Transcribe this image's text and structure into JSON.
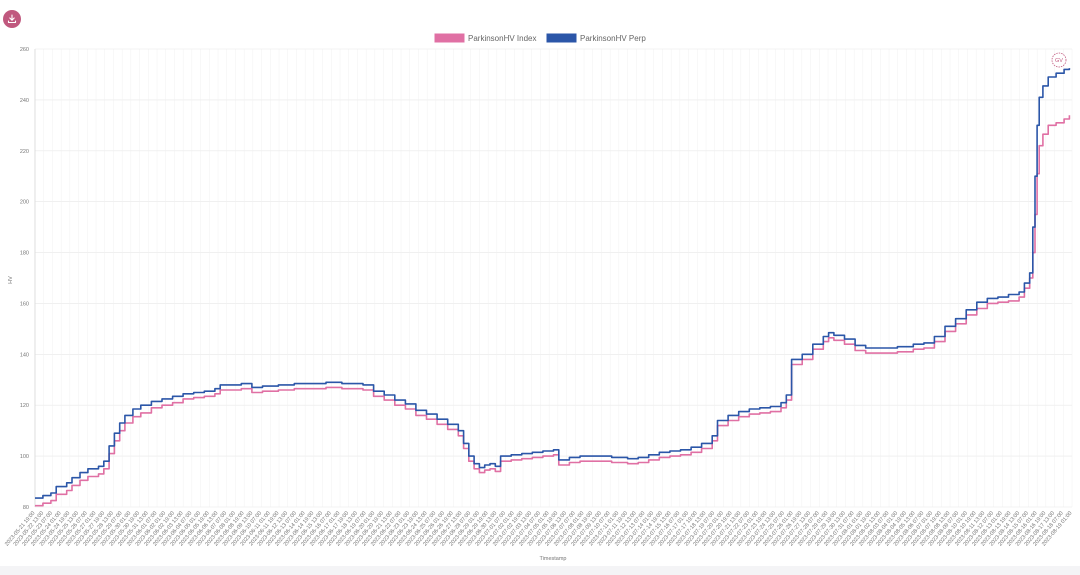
{
  "toolbar": {
    "download_icon": "download-icon"
  },
  "chart_data": {
    "type": "line",
    "xlabel": "Timestamp",
    "ylabel": "HV",
    "ylim": [
      80,
      260
    ],
    "yticks": [
      80,
      100,
      120,
      140,
      160,
      180,
      200,
      220,
      240,
      260
    ],
    "legend": "top-center",
    "grid": true,
    "annotation": "GV",
    "x_first_tick": "2023-05-21 19:00",
    "x_last_tick": "2023-08-19 01:00",
    "x_tick_count": 120,
    "series": [
      {
        "name": "ParkinsonHV Index",
        "color": "#e070a4",
        "points": [
          [
            0,
            80.5
          ],
          [
            1.5,
            81.5
          ],
          [
            3,
            82.5
          ],
          [
            4,
            85
          ],
          [
            6,
            86.5
          ],
          [
            7,
            88.5
          ],
          [
            8.5,
            90.5
          ],
          [
            10,
            92
          ],
          [
            12,
            93
          ],
          [
            13,
            95
          ],
          [
            14,
            101
          ],
          [
            15,
            106
          ],
          [
            16,
            110
          ],
          [
            17,
            113
          ],
          [
            18.5,
            115.5
          ],
          [
            20,
            117
          ],
          [
            22,
            119
          ],
          [
            24,
            120
          ],
          [
            26,
            121
          ],
          [
            28,
            122.5
          ],
          [
            30,
            123
          ],
          [
            32,
            123.5
          ],
          [
            34,
            124.5
          ],
          [
            35,
            126
          ],
          [
            37,
            126
          ],
          [
            39,
            126.5
          ],
          [
            41,
            125
          ],
          [
            43,
            125.5
          ],
          [
            46,
            126
          ],
          [
            49,
            126.5
          ],
          [
            52,
            126.5
          ],
          [
            55,
            127
          ],
          [
            58,
            126.5
          ],
          [
            60,
            126.5
          ],
          [
            62,
            126
          ],
          [
            64,
            123.5
          ],
          [
            66,
            122
          ],
          [
            68,
            120
          ],
          [
            70,
            118.5
          ],
          [
            72,
            116
          ],
          [
            74,
            114.5
          ],
          [
            76,
            112.5
          ],
          [
            78,
            110.5
          ],
          [
            80,
            108
          ],
          [
            81,
            103
          ],
          [
            82,
            98
          ],
          [
            83,
            95
          ],
          [
            84,
            93.5
          ],
          [
            85,
            94.5
          ],
          [
            86,
            95
          ],
          [
            87,
            94
          ],
          [
            88,
            98
          ],
          [
            90,
            98.5
          ],
          [
            92,
            99
          ],
          [
            94,
            99.5
          ],
          [
            96,
            100
          ],
          [
            98,
            100.5
          ],
          [
            99,
            96.5
          ],
          [
            101,
            97.5
          ],
          [
            103,
            98
          ],
          [
            106,
            98
          ],
          [
            109,
            97.5
          ],
          [
            112,
            97
          ],
          [
            114,
            97.5
          ],
          [
            116,
            98.5
          ],
          [
            118,
            99.5
          ],
          [
            120,
            100
          ],
          [
            122,
            100.5
          ],
          [
            124,
            101.5
          ],
          [
            126,
            103
          ],
          [
            128,
            106
          ],
          [
            129,
            112
          ],
          [
            131,
            114
          ],
          [
            133,
            115.5
          ],
          [
            135,
            116.5
          ],
          [
            137,
            117
          ],
          [
            139,
            117.5
          ],
          [
            141,
            119
          ],
          [
            142,
            122
          ],
          [
            143,
            136
          ],
          [
            145,
            138
          ],
          [
            147,
            142
          ],
          [
            149,
            145
          ],
          [
            150,
            146.5
          ],
          [
            151,
            145.5
          ],
          [
            153,
            144
          ],
          [
            155,
            141.5
          ],
          [
            157,
            140.5
          ],
          [
            160,
            140.5
          ],
          [
            163,
            141
          ],
          [
            166,
            142
          ],
          [
            168,
            142.5
          ],
          [
            170,
            145
          ],
          [
            172,
            149
          ],
          [
            174,
            152
          ],
          [
            176,
            155.5
          ],
          [
            178,
            158
          ],
          [
            180,
            160
          ],
          [
            182,
            160.5
          ],
          [
            184,
            161
          ],
          [
            186,
            162.5
          ],
          [
            187,
            166
          ],
          [
            188,
            170
          ],
          [
            188.6,
            180
          ],
          [
            189,
            195
          ],
          [
            189.4,
            211
          ],
          [
            189.8,
            222
          ],
          [
            190.5,
            226.5
          ],
          [
            191.5,
            230
          ],
          [
            193,
            231
          ],
          [
            194.5,
            232.5
          ],
          [
            195.5,
            234
          ]
        ]
      },
      {
        "name": "ParkinsonHV Perp",
        "color": "#2b56a8",
        "points": [
          [
            0,
            83.5
          ],
          [
            1.5,
            84.5
          ],
          [
            3,
            85.5
          ],
          [
            4,
            88
          ],
          [
            6,
            89.5
          ],
          [
            7,
            91.5
          ],
          [
            8.5,
            93.5
          ],
          [
            10,
            95
          ],
          [
            12,
            96
          ],
          [
            13,
            98
          ],
          [
            14,
            104
          ],
          [
            15,
            109
          ],
          [
            16,
            113
          ],
          [
            17,
            116
          ],
          [
            18.5,
            118.5
          ],
          [
            20,
            120
          ],
          [
            22,
            121.5
          ],
          [
            24,
            122.5
          ],
          [
            26,
            123.5
          ],
          [
            28,
            124.5
          ],
          [
            30,
            125
          ],
          [
            32,
            125.5
          ],
          [
            34,
            126.5
          ],
          [
            35,
            128
          ],
          [
            37,
            128
          ],
          [
            39,
            128.5
          ],
          [
            41,
            127
          ],
          [
            43,
            127.5
          ],
          [
            46,
            128
          ],
          [
            49,
            128.5
          ],
          [
            52,
            128.5
          ],
          [
            55,
            129
          ],
          [
            58,
            128.5
          ],
          [
            60,
            128.5
          ],
          [
            62,
            128
          ],
          [
            64,
            125.5
          ],
          [
            66,
            124
          ],
          [
            68,
            122
          ],
          [
            70,
            120.5
          ],
          [
            72,
            118
          ],
          [
            74,
            116.5
          ],
          [
            76,
            114.5
          ],
          [
            78,
            112.5
          ],
          [
            80,
            110
          ],
          [
            81,
            105
          ],
          [
            82,
            100
          ],
          [
            83,
            97
          ],
          [
            84,
            95.5
          ],
          [
            85,
            96.5
          ],
          [
            86,
            97
          ],
          [
            87,
            96
          ],
          [
            88,
            100
          ],
          [
            90,
            100.5
          ],
          [
            92,
            101
          ],
          [
            94,
            101.5
          ],
          [
            96,
            102
          ],
          [
            98,
            102.5
          ],
          [
            99,
            98.5
          ],
          [
            101,
            99.5
          ],
          [
            103,
            100
          ],
          [
            106,
            100
          ],
          [
            109,
            99.5
          ],
          [
            112,
            99
          ],
          [
            114,
            99.5
          ],
          [
            116,
            100.5
          ],
          [
            118,
            101.5
          ],
          [
            120,
            102
          ],
          [
            122,
            102.5
          ],
          [
            124,
            103.5
          ],
          [
            126,
            105
          ],
          [
            128,
            108
          ],
          [
            129,
            114
          ],
          [
            131,
            116
          ],
          [
            133,
            117.5
          ],
          [
            135,
            118.5
          ],
          [
            137,
            119
          ],
          [
            139,
            119.5
          ],
          [
            141,
            121
          ],
          [
            142,
            124
          ],
          [
            143,
            138
          ],
          [
            145,
            140
          ],
          [
            147,
            144
          ],
          [
            149,
            147
          ],
          [
            150,
            148.5
          ],
          [
            151,
            147.5
          ],
          [
            153,
            146
          ],
          [
            155,
            143.5
          ],
          [
            157,
            142.5
          ],
          [
            160,
            142.5
          ],
          [
            163,
            143
          ],
          [
            166,
            144
          ],
          [
            168,
            144.5
          ],
          [
            170,
            147
          ],
          [
            172,
            151
          ],
          [
            174,
            154
          ],
          [
            176,
            157.5
          ],
          [
            178,
            160.5
          ],
          [
            180,
            162
          ],
          [
            182,
            162.5
          ],
          [
            184,
            163.5
          ],
          [
            186,
            164.5
          ],
          [
            187,
            168
          ],
          [
            188,
            172
          ],
          [
            188.6,
            190
          ],
          [
            189,
            210
          ],
          [
            189.4,
            230
          ],
          [
            189.8,
            241
          ],
          [
            190.5,
            245.5
          ],
          [
            191.5,
            249
          ],
          [
            193,
            250.5
          ],
          [
            194.5,
            252
          ],
          [
            195.5,
            252.5
          ]
        ]
      }
    ]
  }
}
